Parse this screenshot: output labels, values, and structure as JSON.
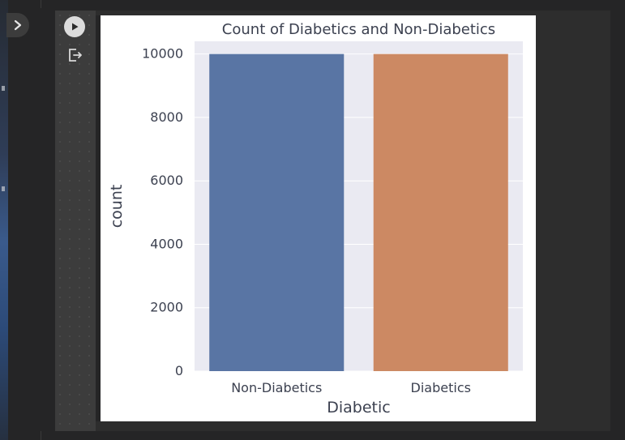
{
  "cell": {
    "run_button": "run-cell",
    "output_icon": "output-redirect"
  },
  "chart_data": {
    "type": "bar",
    "title": "Count of Diabetics and Non-Diabetics",
    "xlabel": "Diabetic",
    "ylabel": "count",
    "categories": [
      "Non-Diabetics",
      "Diabetics"
    ],
    "values": [
      10000,
      10000
    ],
    "colors": [
      "#5975a4",
      "#cc8963"
    ],
    "ylim": [
      0,
      10400
    ],
    "yticks": [
      0,
      2000,
      4000,
      6000,
      8000,
      10000
    ],
    "ytick_labels": [
      "0",
      "2000",
      "4000",
      "6000",
      "8000",
      "10000"
    ],
    "grid": true,
    "plot_background": "#eaeaf2",
    "text_color": "#3c4150"
  }
}
